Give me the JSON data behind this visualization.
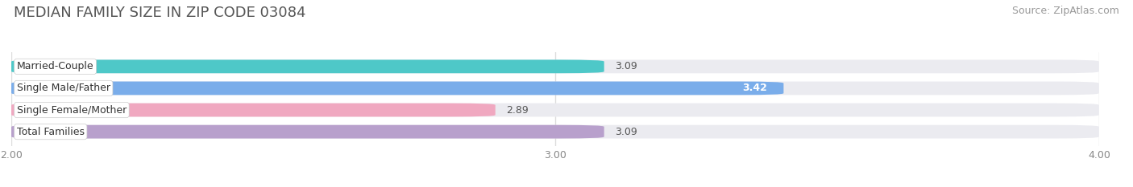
{
  "title": "MEDIAN FAMILY SIZE IN ZIP CODE 03084",
  "source": "Source: ZipAtlas.com",
  "categories": [
    "Married-Couple",
    "Single Male/Father",
    "Single Female/Mother",
    "Total Families"
  ],
  "values": [
    3.09,
    3.42,
    2.89,
    3.09
  ],
  "bar_colors": [
    "#4ec8c8",
    "#7aadea",
    "#f0a8c0",
    "#b8a0cc"
  ],
  "value_label_colors": [
    "#555555",
    "#ffffff",
    "#555555",
    "#555555"
  ],
  "xlim": [
    2.0,
    4.0
  ],
  "xticks": [
    2.0,
    3.0,
    4.0
  ],
  "xtick_labels": [
    "2.00",
    "3.00",
    "4.00"
  ],
  "bar_height": 0.62,
  "background_color": "#ffffff",
  "bar_background_color": "#ebebf0",
  "title_fontsize": 13,
  "source_fontsize": 9,
  "value_fontsize": 9,
  "tick_fontsize": 9,
  "category_fontsize": 9
}
